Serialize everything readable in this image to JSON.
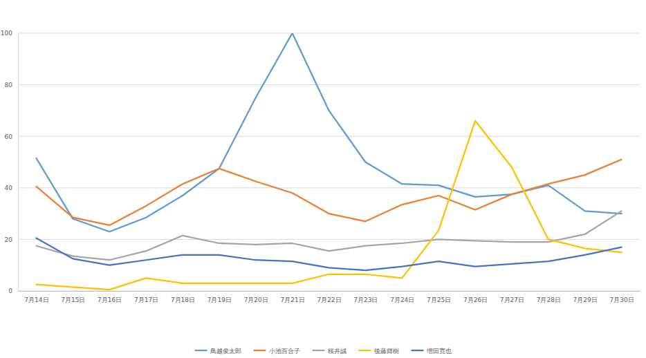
{
  "chart_data": {
    "type": "line",
    "categories": [
      "7月14日",
      "7月15日",
      "7月16日",
      "7月17日",
      "7月18日",
      "7月19日",
      "7月20日",
      "7月21日",
      "7月22日",
      "7月23日",
      "7月24日",
      "7月25日",
      "7月26日",
      "7月27日",
      "7月28日",
      "7月29日",
      "7月30日"
    ],
    "series": [
      {
        "name": "鳥越俊太郎",
        "color": "#5b9bd5",
        "values": [
          51.5,
          28,
          23,
          28.5,
          37,
          47.5,
          75,
          100,
          70,
          50,
          41.5,
          41,
          36.5,
          37.5,
          41,
          31,
          30
        ]
      },
      {
        "name": "小池百合子",
        "color": "#ed7d31",
        "values": [
          40.5,
          28.5,
          25.5,
          33,
          41.5,
          47.5,
          42.5,
          38,
          30,
          27,
          33.5,
          37,
          31.5,
          37.5,
          41.5,
          45,
          51
        ]
      },
      {
        "name": "桜井誠",
        "color": "#a5a5a5",
        "values": [
          17.5,
          13.5,
          12,
          15.5,
          21.5,
          18.5,
          18,
          18.5,
          15.5,
          17.5,
          18.5,
          20,
          19.5,
          19,
          19,
          22,
          31
        ]
      },
      {
        "name": "後藤輝樹",
        "color": "#ffc000",
        "values": [
          2.5,
          1.5,
          0.5,
          5,
          3,
          3,
          3,
          3,
          6.5,
          6.5,
          5,
          23.5,
          66,
          48,
          20,
          16.5,
          15
        ]
      },
      {
        "name": "増田寛也",
        "color": "#4472c4",
        "values": [
          20.5,
          12.5,
          10,
          12,
          14,
          14,
          12,
          11.5,
          9,
          8,
          9.5,
          11.5,
          9.5,
          10.5,
          11.5,
          14,
          17
        ]
      }
    ],
    "ylim": [
      0,
      100
    ],
    "yticks": [
      0,
      20,
      40,
      60,
      80,
      100
    ],
    "grid": true,
    "legend": "bottom"
  }
}
